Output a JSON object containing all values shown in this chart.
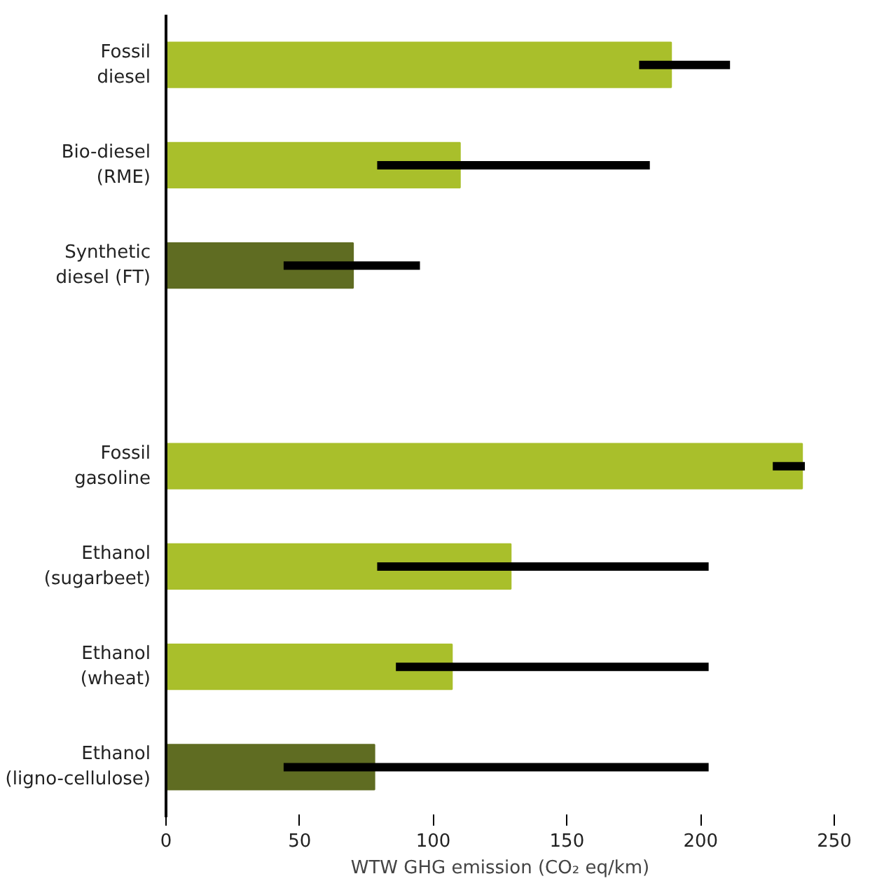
{
  "chart_data": {
    "type": "bar",
    "orientation": "horizontal",
    "categories": [
      "Fossil\ndiesel",
      "Bio-diesel\n(RME)",
      "Synthetic\ndiesel (FT)",
      null,
      "Fossil\ngasoline",
      "Ethanol\n(sugarbeet)",
      "Ethanol\n(wheat)",
      "Ethanol\n(ligno-cellulose)"
    ],
    "values": [
      189,
      110,
      70,
      null,
      238,
      129,
      107,
      78
    ],
    "colors": [
      "#a9bf2b",
      "#a9bf2b",
      "#5f6c22",
      null,
      "#a9bf2b",
      "#a9bf2b",
      "#a9bf2b",
      "#5f6c22"
    ],
    "errors": [
      [
        177,
        211
      ],
      [
        79,
        181
      ],
      [
        44,
        95
      ],
      null,
      [
        227,
        239
      ],
      [
        79,
        203
      ],
      [
        86,
        203
      ],
      [
        44,
        203
      ]
    ],
    "xlabel": "WTW GHG emission (CO₂ eq/km)",
    "xlim": [
      0,
      250
    ],
    "xticks": [
      0,
      50,
      100,
      150,
      200,
      250
    ],
    "grid": false
  }
}
